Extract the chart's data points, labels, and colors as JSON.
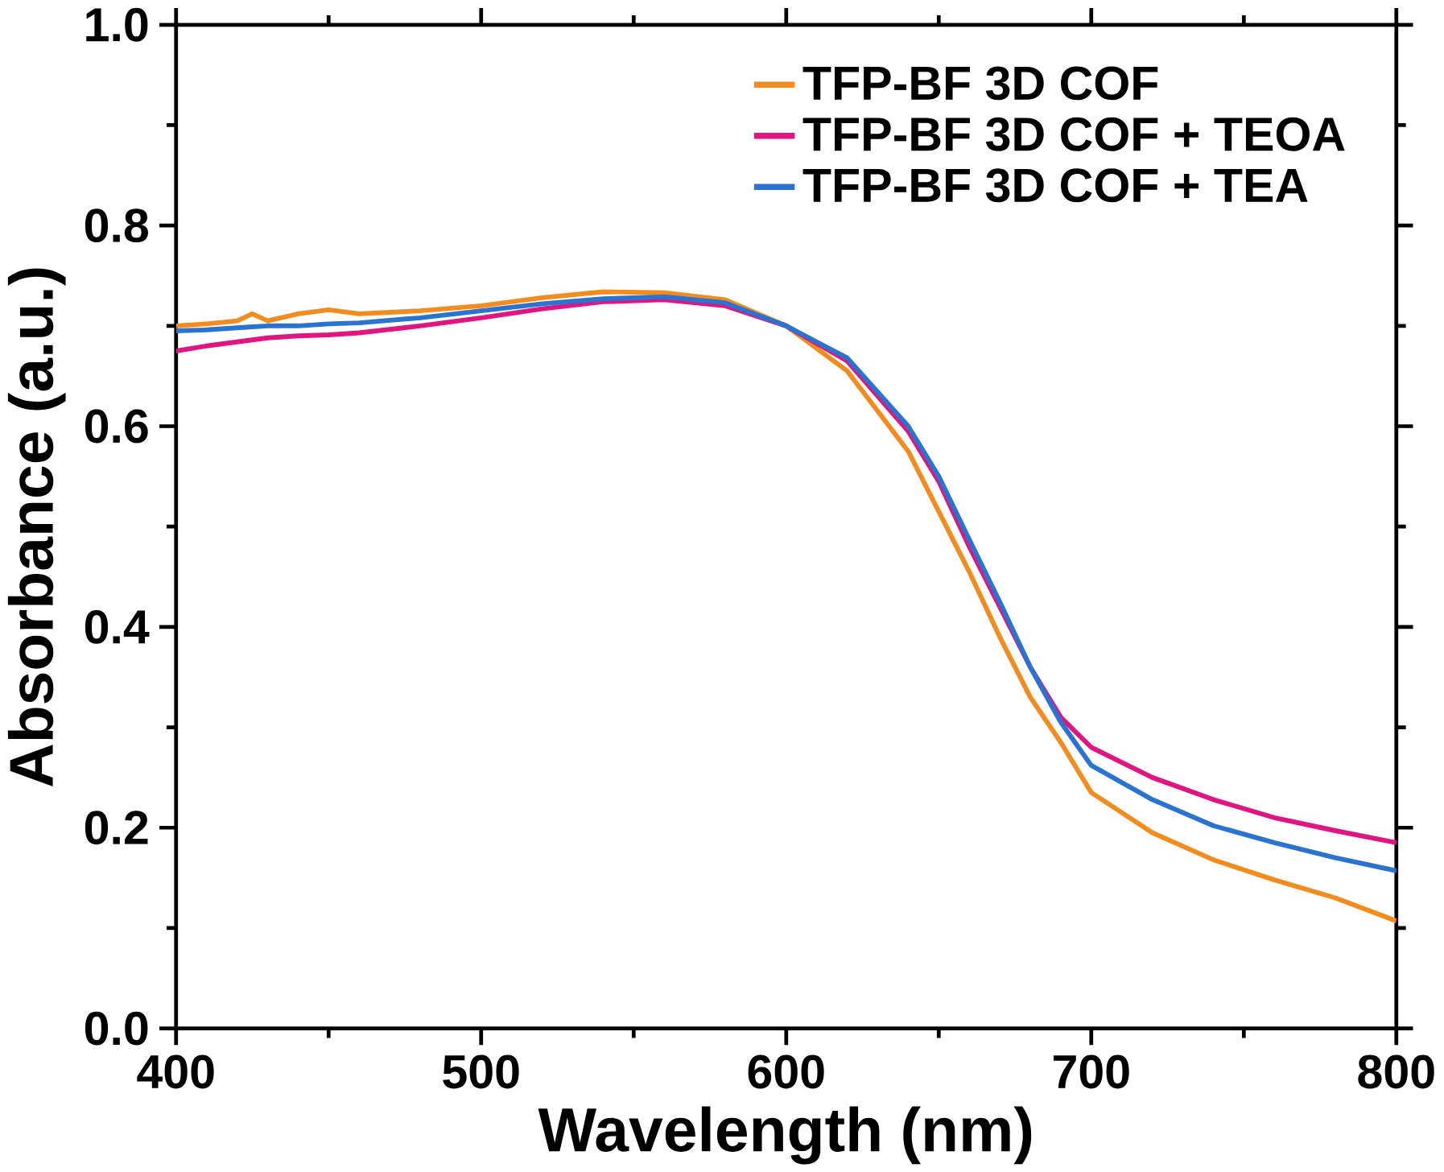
{
  "chart_data": {
    "type": "line",
    "xlabel": "Wavelength (nm)",
    "ylabel": "Absorbance (a.u.)",
    "xlim": [
      400,
      800
    ],
    "ylim": [
      0,
      1
    ],
    "xticks": [
      400,
      500,
      600,
      700,
      800
    ],
    "yticks": [
      {
        "value": 0,
        "label": "0.0"
      },
      0.2,
      0.4,
      0.6,
      0.8,
      {
        "value": 1,
        "label": "1.0"
      }
    ],
    "legend": "top right",
    "grid": false,
    "marker": "none",
    "line_style": "solid",
    "x": [
      400,
      410,
      420,
      425,
      430,
      440,
      450,
      460,
      480,
      500,
      520,
      540,
      560,
      580,
      600,
      620,
      640,
      650,
      660,
      670,
      680,
      690,
      700,
      720,
      740,
      760,
      780,
      800
    ],
    "series": [
      {
        "name": "TFP-BF 3D COF",
        "color": "#f28c1e",
        "values": [
          0.7,
          0.702,
          0.705,
          0.712,
          0.705,
          0.712,
          0.716,
          0.712,
          0.715,
          0.72,
          0.728,
          0.734,
          0.733,
          0.726,
          0.7,
          0.655,
          0.575,
          0.515,
          0.455,
          0.39,
          0.33,
          0.285,
          0.235,
          0.195,
          0.168,
          0.148,
          0.13,
          0.107
        ]
      },
      {
        "name": "TFP-BF 3D COF + TEOA",
        "color": "#e0157f",
        "values": [
          0.675,
          0.68,
          0.684,
          0.686,
          0.688,
          0.69,
          0.691,
          0.693,
          0.7,
          0.708,
          0.717,
          0.724,
          0.726,
          0.72,
          0.7,
          0.665,
          0.595,
          0.545,
          0.48,
          0.42,
          0.36,
          0.31,
          0.28,
          0.25,
          0.228,
          0.21,
          0.197,
          0.185
        ]
      },
      {
        "name": "TFP-BF 3D COF + TEA",
        "color": "#2a73d0",
        "values": [
          0.695,
          0.696,
          0.698,
          0.699,
          0.7,
          0.7,
          0.702,
          0.703,
          0.708,
          0.715,
          0.722,
          0.727,
          0.729,
          0.723,
          0.7,
          0.668,
          0.6,
          0.55,
          0.487,
          0.425,
          0.36,
          0.305,
          0.262,
          0.228,
          0.202,
          0.185,
          0.17,
          0.157
        ]
      }
    ]
  }
}
